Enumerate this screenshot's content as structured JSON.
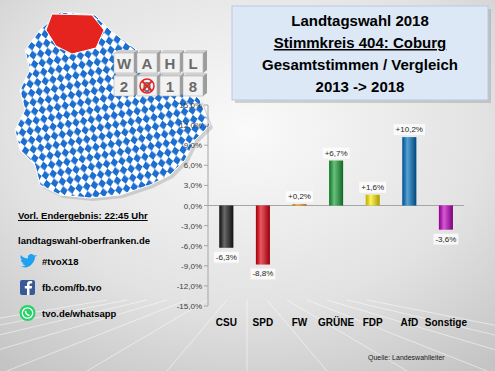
{
  "chart_data": {
    "type": "bar",
    "title": "Landtagswahl 2018",
    "subtitle": [
      "Stimmkreis 404: Coburg",
      "Gesamtstimmen / Vergleich",
      "2013 -> 2018"
    ],
    "categories": [
      "CSU",
      "SPD",
      "FW",
      "GRÜNE",
      "FDP",
      "AfD",
      "Sonstige"
    ],
    "values": [
      -6.3,
      -8.8,
      0.2,
      6.7,
      1.6,
      10.2,
      -3.6
    ],
    "value_labels": [
      "-6,3%",
      "-8,8%",
      "+0,2%",
      "+6,7%",
      "+1,6%",
      "+10,2%",
      "-3,6%"
    ],
    "colors": [
      "#1a1a1a",
      "#e3000f",
      "#f39200",
      "#1aa037",
      "#ffed00",
      "#0070c0",
      "#c000c0"
    ],
    "ylim": [
      -15,
      15
    ],
    "yticks": [
      {
        "value": -15,
        "label": "-15,0%"
      },
      {
        "value": -12,
        "label": "-12,0%"
      },
      {
        "value": -9,
        "label": "-9,0%"
      },
      {
        "value": -6,
        "label": "-6,0%"
      },
      {
        "value": -3,
        "label": "-3,0%"
      },
      {
        "value": 0,
        "label": "0,0%"
      },
      {
        "value": 3,
        "label": "3,0%"
      },
      {
        "value": 6,
        "label": "6,0%"
      },
      {
        "value": 9,
        "label": "9,0%"
      },
      {
        "value": 12,
        "label": "12,0%"
      },
      {
        "value": 15,
        "label": "15,0%"
      }
    ],
    "grid": false,
    "data_labels": true,
    "source": "Quelle: Landeswahlleiter"
  },
  "page": {
    "result_time": "Vorl. Endergebnis: 22:45 Uhr",
    "website": "landtagswahl-oberfranken.de",
    "twitter": "#tvoX18",
    "facebook": "fb.com/fb.tvo",
    "whatsapp": "tvo.de/whatsapp",
    "logo": {
      "top": [
        "W",
        "A",
        "H",
        "L"
      ],
      "bottom": [
        "2",
        "0",
        "1",
        "8"
      ]
    }
  }
}
